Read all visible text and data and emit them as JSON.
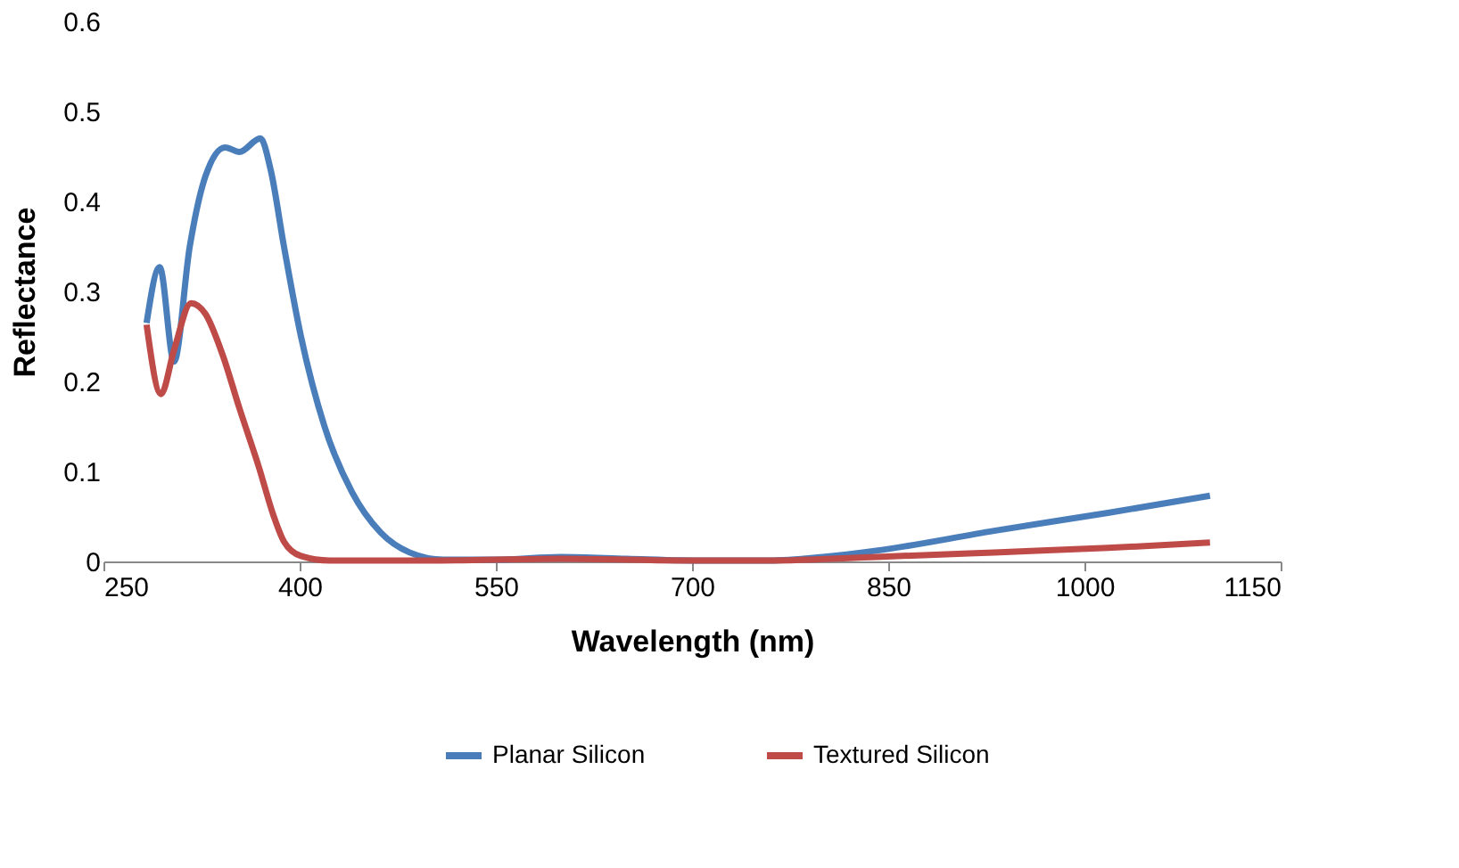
{
  "chart_data": {
    "type": "line",
    "xlabel": "Wavelength (nm)",
    "ylabel": "Reflectance",
    "xlim": [
      250,
      1150
    ],
    "xticks": [
      250,
      400,
      550,
      700,
      850,
      1000,
      1150
    ],
    "ylim": [
      0,
      0.6
    ],
    "yticks": [
      0,
      0.1,
      0.2,
      0.3,
      0.4,
      0.5,
      0.6
    ],
    "grid": false,
    "legend": "bottom",
    "marker": "none",
    "line_style": "solid",
    "series": [
      {
        "name": "Planar Silicon",
        "color": "#4a7ebb",
        "x": [
          283,
          293,
          304,
          316,
          328,
          343,
          354,
          370,
          378,
          388,
          401,
          419,
          440,
          462,
          484,
          510,
          550,
          600,
          650,
          700,
          759,
          800,
          841,
          931,
          1018,
          1096
        ],
        "values": [
          0.265,
          0.327,
          0.222,
          0.35,
          0.428,
          0.46,
          0.455,
          0.47,
          0.434,
          0.35,
          0.25,
          0.15,
          0.077,
          0.032,
          0.01,
          0.002,
          0.002,
          0.005,
          0.003,
          0.001,
          0.001,
          0.005,
          0.012,
          0.034,
          0.054,
          0.073
        ]
      },
      {
        "name": "Textured Silicon",
        "color": "#be4b48",
        "x": [
          283,
          294,
          304,
          317,
          328,
          341,
          354,
          369,
          380,
          388,
          401,
          423,
          500,
          600,
          700,
          759,
          841,
          931,
          1018,
          1096
        ],
        "values": [
          0.263,
          0.186,
          0.235,
          0.287,
          0.275,
          0.23,
          0.17,
          0.104,
          0.051,
          0.022,
          0.006,
          0.001,
          0.001,
          0.003,
          0.001,
          0.001,
          0.005,
          0.01,
          0.015,
          0.021
        ]
      }
    ]
  }
}
